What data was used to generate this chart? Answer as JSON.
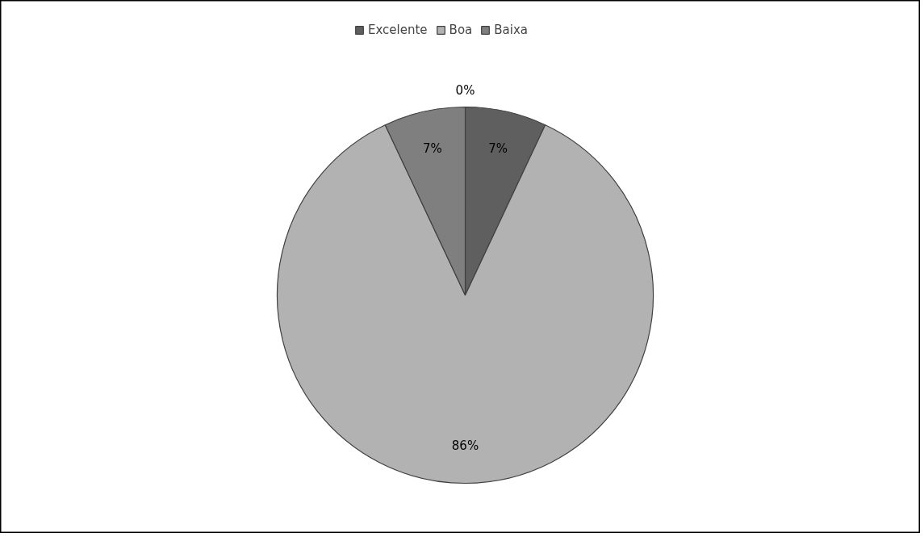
{
  "chart_data": {
    "type": "pie",
    "categories": [
      "Excelente",
      "Boa",
      "Baixa",
      null
    ],
    "values": [
      7,
      86,
      7,
      0
    ],
    "colors": [
      "#5f5f5f",
      "#b2b2b2",
      "#7f7f7f",
      "#4d4d4d"
    ],
    "value_labels": [
      "7%",
      "86%",
      "7%",
      "0%"
    ],
    "legend": "top"
  }
}
